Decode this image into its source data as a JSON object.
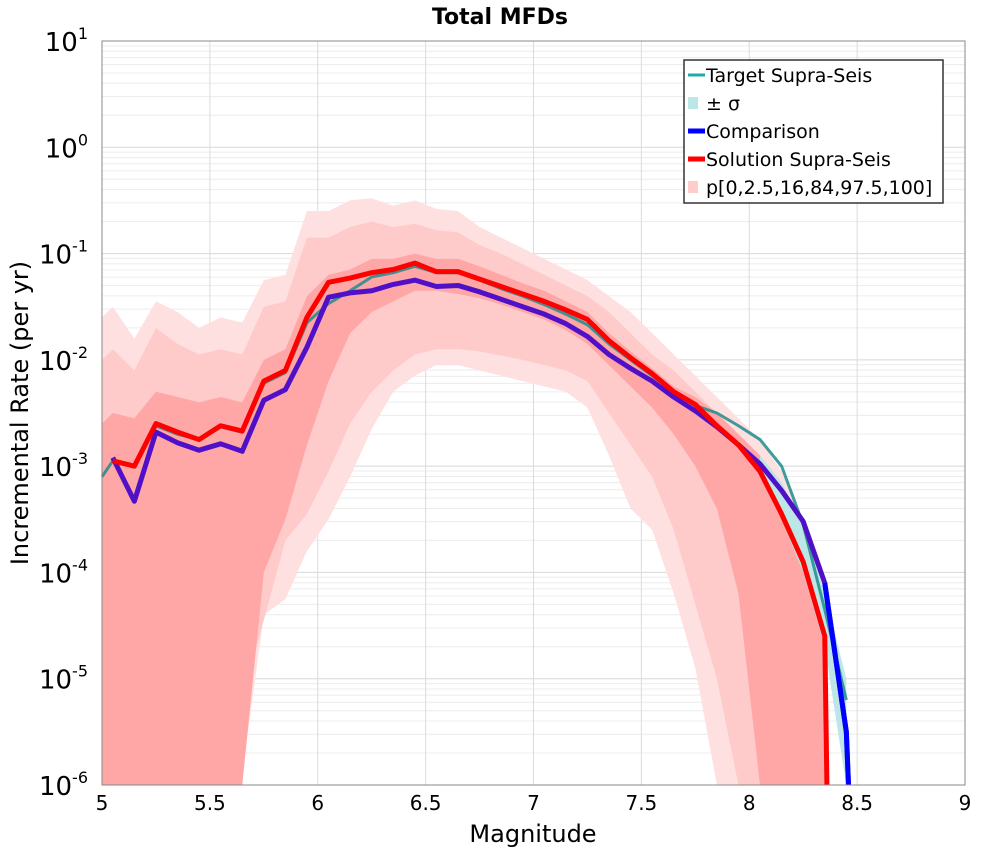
{
  "chart_data": {
    "type": "line",
    "title": "Total MFDs",
    "xlabel": "Magnitude",
    "ylabel": "Incremental Rate (per yr)",
    "xlim": [
      5,
      9
    ],
    "ylim_log10": [
      -6,
      1
    ],
    "y_scale": "log",
    "grid": true,
    "legend_position": "top-right",
    "x_ticks": [
      "5",
      "5.5",
      "6",
      "6.5",
      "7",
      "7.5",
      "8",
      "8.5",
      "9"
    ],
    "y_ticks": [
      {
        "base": "10",
        "exp": "-6"
      },
      {
        "base": "10",
        "exp": "-5"
      },
      {
        "base": "10",
        "exp": "-4"
      },
      {
        "base": "10",
        "exp": "-3"
      },
      {
        "base": "10",
        "exp": "-2"
      },
      {
        "base": "10",
        "exp": "-1"
      },
      {
        "base": "10",
        "exp": "0"
      },
      {
        "base": "10",
        "exp": "1"
      }
    ],
    "legend": [
      {
        "label": "Target Supra-Seis",
        "color": "#22aaaa",
        "kind": "line"
      },
      {
        "label": "± σ",
        "color": "#bde6e6",
        "kind": "box"
      },
      {
        "label": "Comparison",
        "color": "#0000ff",
        "kind": "line"
      },
      {
        "label": "Solution Supra-Seis",
        "color": "#ff0000",
        "kind": "line"
      },
      {
        "label": "p[0,2.5,16,84,97.5,100]",
        "color": "#ffcccc",
        "kind": "box"
      }
    ],
    "series": [
      {
        "name": "Target Supra-Seis",
        "color": "#1e8c8c",
        "x": [
          5.0,
          5.05,
          5.15,
          5.25,
          5.35,
          5.45,
          5.55,
          5.65,
          5.75,
          5.85,
          5.95,
          6.05,
          6.15,
          6.25,
          6.35,
          6.45,
          6.55,
          6.65,
          6.75,
          6.85,
          6.95,
          7.05,
          7.15,
          7.25,
          7.35,
          7.45,
          7.55,
          7.65,
          7.75,
          7.85,
          7.95,
          8.05,
          8.15,
          8.25,
          8.35,
          8.45
        ],
        "log10_y": [
          -3.1,
          -2.95,
          -3.0,
          -2.62,
          -2.7,
          -2.75,
          -2.63,
          -2.68,
          -2.22,
          -2.12,
          -1.65,
          -1.47,
          -1.35,
          -1.22,
          -1.18,
          -1.12,
          -1.18,
          -1.18,
          -1.25,
          -1.33,
          -1.4,
          -1.48,
          -1.57,
          -1.67,
          -1.85,
          -2.0,
          -2.15,
          -2.3,
          -2.43,
          -2.5,
          -2.62,
          -2.75,
          -3.0,
          -3.55,
          -4.35,
          -5.2
        ]
      },
      {
        "name": "Comparison",
        "color": "#0000ff",
        "x": [
          5.05,
          5.15,
          5.25,
          5.35,
          5.45,
          5.55,
          5.65,
          5.75,
          5.85,
          5.95,
          6.05,
          6.15,
          6.25,
          6.35,
          6.45,
          6.55,
          6.65,
          6.75,
          6.85,
          6.95,
          7.05,
          7.15,
          7.25,
          7.35,
          7.45,
          7.55,
          7.65,
          7.75,
          7.85,
          7.95,
          8.05,
          8.15,
          8.25,
          8.35,
          8.45,
          8.46
        ],
        "log10_y": [
          -2.92,
          -3.33,
          -2.68,
          -2.78,
          -2.85,
          -2.79,
          -2.86,
          -2.38,
          -2.28,
          -1.88,
          -1.41,
          -1.37,
          -1.35,
          -1.29,
          -1.25,
          -1.31,
          -1.3,
          -1.36,
          -1.43,
          -1.5,
          -1.57,
          -1.66,
          -1.78,
          -1.95,
          -2.08,
          -2.2,
          -2.35,
          -2.48,
          -2.63,
          -2.8,
          -2.98,
          -3.23,
          -3.52,
          -4.1,
          -5.5,
          -6.0
        ]
      },
      {
        "name": "Solution Supra-Seis",
        "color": "#ff0000",
        "x": [
          5.05,
          5.15,
          5.25,
          5.35,
          5.45,
          5.55,
          5.65,
          5.75,
          5.85,
          5.95,
          6.05,
          6.15,
          6.25,
          6.35,
          6.45,
          6.55,
          6.65,
          6.75,
          6.85,
          6.95,
          7.05,
          7.15,
          7.25,
          7.35,
          7.45,
          7.55,
          7.65,
          7.75,
          7.85,
          7.95,
          8.05,
          8.15,
          8.25,
          8.35,
          8.36
        ],
        "log10_y": [
          -2.95,
          -3.0,
          -2.6,
          -2.68,
          -2.75,
          -2.62,
          -2.67,
          -2.2,
          -2.1,
          -1.6,
          -1.27,
          -1.23,
          -1.18,
          -1.15,
          -1.09,
          -1.17,
          -1.17,
          -1.24,
          -1.31,
          -1.38,
          -1.45,
          -1.53,
          -1.62,
          -1.82,
          -1.98,
          -2.13,
          -2.3,
          -2.42,
          -2.62,
          -2.8,
          -3.05,
          -3.45,
          -3.9,
          -4.6,
          -6.0
        ]
      }
    ],
    "bands": [
      {
        "name": "p[0,100]",
        "color": "#ffe0e0",
        "x": [
          5.0,
          5.05,
          5.15,
          5.25,
          5.35,
          5.45,
          5.55,
          5.65,
          5.75,
          5.85,
          5.95,
          6.05,
          6.15,
          6.25,
          6.35,
          6.45,
          6.55,
          6.65,
          6.75,
          6.85,
          6.95,
          7.05,
          7.15,
          7.25,
          7.35,
          7.45,
          7.55,
          7.65,
          7.75,
          7.85,
          7.95,
          8.05,
          8.15,
          8.25,
          8.35
        ],
        "log10_upper": [
          -1.6,
          -1.5,
          -1.8,
          -1.45,
          -1.55,
          -1.7,
          -1.6,
          -1.65,
          -1.25,
          -1.2,
          -0.6,
          -0.6,
          -0.5,
          -0.48,
          -0.55,
          -0.5,
          -0.58,
          -0.6,
          -0.75,
          -0.85,
          -0.95,
          -1.05,
          -1.15,
          -1.25,
          -1.4,
          -1.55,
          -1.75,
          -1.95,
          -2.15,
          -2.35,
          -2.55,
          -2.75,
          -3.05,
          -3.5,
          -4.3
        ],
        "log10_lower": [
          -6.0,
          -6.0,
          -6.0,
          -6.0,
          -6.0,
          -6.0,
          -5.8,
          -5.9,
          -4.4,
          -4.25,
          -3.8,
          -3.5,
          -3.1,
          -2.65,
          -2.3,
          -2.15,
          -2.05,
          -2.05,
          -2.1,
          -2.15,
          -2.2,
          -2.25,
          -2.3,
          -2.45,
          -2.9,
          -3.4,
          -3.6,
          -4.2,
          -4.9,
          -6.0,
          -6.0,
          -6.0,
          -6.0,
          -6.0,
          -6.0
        ]
      },
      {
        "name": "p[2.5,97.5]",
        "color": "#ffcaca",
        "x": [
          5.0,
          5.05,
          5.15,
          5.25,
          5.35,
          5.45,
          5.55,
          5.65,
          5.75,
          5.85,
          5.95,
          6.05,
          6.15,
          6.25,
          6.35,
          6.45,
          6.55,
          6.65,
          6.75,
          6.85,
          6.95,
          7.05,
          7.15,
          7.25,
          7.35,
          7.45,
          7.55,
          7.65,
          7.75,
          7.85,
          7.95,
          8.05,
          8.15,
          8.25,
          8.35
        ],
        "log10_upper": [
          -2.0,
          -1.9,
          -2.1,
          -1.7,
          -1.85,
          -1.95,
          -1.9,
          -1.95,
          -1.5,
          -1.45,
          -0.85,
          -0.85,
          -0.75,
          -0.7,
          -0.75,
          -0.72,
          -0.78,
          -0.8,
          -0.92,
          -1.0,
          -1.1,
          -1.2,
          -1.3,
          -1.4,
          -1.55,
          -1.75,
          -1.95,
          -2.1,
          -2.3,
          -2.5,
          -2.7,
          -2.95,
          -3.25,
          -3.8,
          -4.5
        ],
        "log10_lower": [
          -6.0,
          -6.0,
          -6.0,
          -5.0,
          -4.45,
          -4.55,
          -5.1,
          -5.2,
          -4.45,
          -3.7,
          -3.45,
          -3.05,
          -2.6,
          -2.3,
          -2.1,
          -1.95,
          -1.9,
          -1.9,
          -1.92,
          -1.96,
          -2.0,
          -2.05,
          -2.1,
          -2.2,
          -2.5,
          -2.8,
          -3.1,
          -3.6,
          -4.3,
          -5.0,
          -6.0,
          -6.0,
          -6.0,
          -6.0,
          -6.0
        ]
      },
      {
        "name": "p[16,84]",
        "color": "#ffa6a6",
        "x": [
          5.0,
          5.05,
          5.15,
          5.25,
          5.35,
          5.45,
          5.55,
          5.65,
          5.75,
          5.85,
          5.95,
          6.05,
          6.15,
          6.25,
          6.35,
          6.45,
          6.55,
          6.65,
          6.75,
          6.85,
          6.95,
          7.05,
          7.15,
          7.25,
          7.35,
          7.45,
          7.55,
          7.65,
          7.75,
          7.85,
          7.95,
          8.05,
          8.15,
          8.25,
          8.35
        ],
        "log10_upper": [
          -2.6,
          -2.5,
          -2.55,
          -2.3,
          -2.35,
          -2.4,
          -2.35,
          -2.4,
          -2.0,
          -1.9,
          -1.4,
          -1.2,
          -1.15,
          -1.05,
          -1.05,
          -1.0,
          -1.05,
          -1.05,
          -1.12,
          -1.2,
          -1.28,
          -1.35,
          -1.45,
          -1.55,
          -1.75,
          -1.92,
          -2.08,
          -2.25,
          -2.35,
          -2.5,
          -2.7,
          -2.9,
          -3.2,
          -3.6,
          -4.4
        ],
        "log10_lower": [
          -6.0,
          -6.0,
          -6.0,
          -6.0,
          -6.0,
          -6.0,
          -6.0,
          -6.0,
          -4.0,
          -3.5,
          -2.8,
          -2.2,
          -1.75,
          -1.55,
          -1.45,
          -1.35,
          -1.35,
          -1.38,
          -1.42,
          -1.48,
          -1.55,
          -1.62,
          -1.72,
          -1.85,
          -2.05,
          -2.25,
          -2.45,
          -2.7,
          -3.0,
          -3.4,
          -4.2,
          -6.0,
          -6.0,
          -6.0,
          -6.0
        ]
      },
      {
        "name": "± σ",
        "color": "#bde6e6",
        "x": [
          8.05,
          8.15,
          8.25,
          8.35,
          8.45
        ],
        "log10_upper": [
          -2.9,
          -3.15,
          -3.55,
          -4.2,
          -5.0
        ],
        "log10_lower": [
          -3.05,
          -3.5,
          -4.0,
          -4.7,
          -6.0
        ]
      }
    ]
  }
}
